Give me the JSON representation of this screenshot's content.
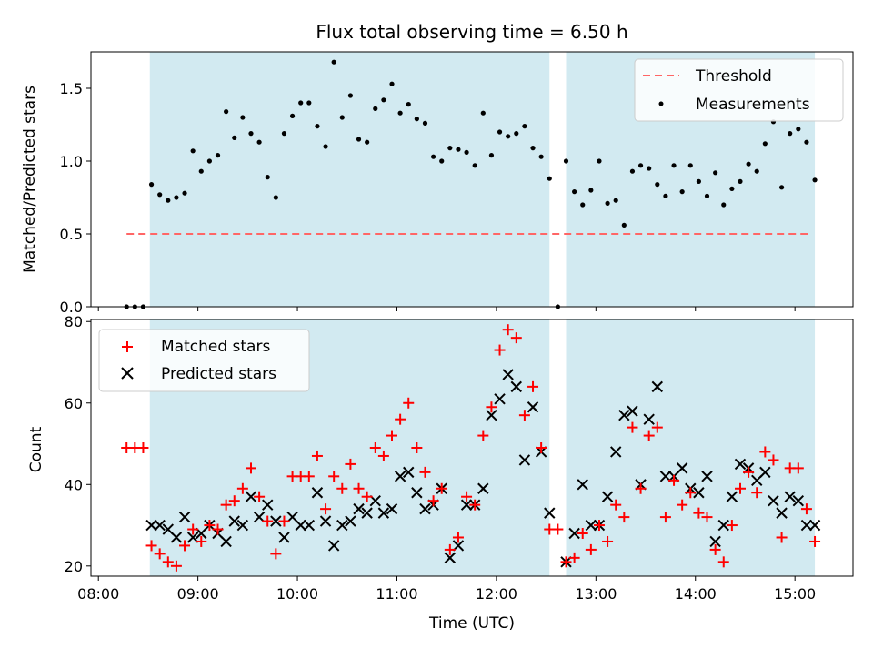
{
  "chart_data": [
    {
      "type": "scatter",
      "title": "Flux total observing time = 6.50 h",
      "ylabel": "Matched/Predicted stars",
      "xlabel": "",
      "ylim": [
        0,
        1.75
      ],
      "yticks": [
        "0.0",
        "0.5",
        "1.0",
        "1.5"
      ],
      "shaded_intervals": [
        [
          "08:31",
          "12:32"
        ],
        [
          "12:42",
          "15:12"
        ]
      ],
      "shade_color": "#add8e6",
      "threshold": {
        "name": "Threshold",
        "value": 0.5,
        "x_range": [
          "08:17",
          "15:10"
        ],
        "color": "#ff6666"
      },
      "legend_position": "top-right",
      "series": [
        {
          "name": "Measurements",
          "color": "#000000",
          "x": [
            "08:17",
            "08:22",
            "08:27",
            "08:32",
            "08:37",
            "08:42",
            "08:47",
            "08:52",
            "08:57",
            "09:02",
            "09:07",
            "09:12",
            "09:17",
            "09:22",
            "09:27",
            "09:32",
            "09:37",
            "09:42",
            "09:47",
            "09:52",
            "09:57",
            "10:02",
            "10:07",
            "10:12",
            "10:17",
            "10:22",
            "10:27",
            "10:32",
            "10:37",
            "10:42",
            "10:47",
            "10:52",
            "10:57",
            "11:02",
            "11:07",
            "11:12",
            "11:17",
            "11:22",
            "11:27",
            "11:32",
            "11:37",
            "11:42",
            "11:47",
            "11:52",
            "11:57",
            "12:02",
            "12:07",
            "12:12",
            "12:17",
            "12:22",
            "12:27",
            "12:32",
            "12:37",
            "12:42",
            "12:47",
            "12:52",
            "12:57",
            "13:02",
            "13:07",
            "13:12",
            "13:17",
            "13:22",
            "13:27",
            "13:32",
            "13:37",
            "13:42",
            "13:47",
            "13:52",
            "13:57",
            "14:02",
            "14:07",
            "14:12",
            "14:17",
            "14:22",
            "14:27",
            "14:32",
            "14:37",
            "14:42",
            "14:47",
            "14:52",
            "14:57",
            "15:02",
            "15:07",
            "15:12"
          ],
          "values": [
            0.0,
            0.0,
            0.0,
            0.84,
            0.77,
            0.73,
            0.75,
            0.78,
            1.07,
            0.93,
            1.0,
            1.04,
            1.34,
            1.16,
            1.3,
            1.19,
            1.13,
            0.89,
            0.75,
            1.19,
            1.31,
            1.4,
            1.4,
            1.24,
            1.1,
            1.68,
            1.3,
            1.45,
            1.15,
            1.13,
            1.36,
            1.42,
            1.53,
            1.33,
            1.39,
            1.29,
            1.26,
            1.03,
            1.0,
            1.09,
            1.08,
            1.06,
            0.97,
            1.33,
            1.04,
            1.2,
            1.17,
            1.19,
            1.24,
            1.09,
            1.03,
            0.88,
            0.0,
            1.0,
            0.79,
            0.7,
            0.8,
            1.0,
            0.71,
            0.73,
            0.56,
            0.93,
            0.97,
            0.95,
            0.84,
            0.76,
            0.97,
            0.79,
            0.97,
            0.86,
            0.76,
            0.92,
            0.7,
            0.81,
            0.86,
            0.98,
            0.93,
            1.12,
            1.27,
            0.82,
            1.19,
            1.22,
            1.13,
            0.87
          ]
        }
      ]
    },
    {
      "type": "scatter",
      "title": "",
      "xlabel": "Time (UTC)",
      "ylabel": "Count",
      "ylim": [
        17.5,
        80.5
      ],
      "yticks": [
        "20",
        "40",
        "60",
        "80"
      ],
      "xticks": [
        "08:00",
        "09:00",
        "10:00",
        "11:00",
        "12:00",
        "13:00",
        "14:00",
        "15:00"
      ],
      "shaded_intervals": [
        [
          "08:31",
          "12:32"
        ],
        [
          "12:42",
          "15:12"
        ]
      ],
      "shade_color": "#add8e6",
      "legend_position": "top-left",
      "series": [
        {
          "name": "Matched stars",
          "marker": "plus",
          "color": "#ff0000",
          "x": [
            "08:17",
            "08:22",
            "08:27",
            "08:32",
            "08:37",
            "08:42",
            "08:47",
            "08:52",
            "08:57",
            "09:02",
            "09:07",
            "09:12",
            "09:17",
            "09:22",
            "09:27",
            "09:32",
            "09:37",
            "09:42",
            "09:47",
            "09:52",
            "09:57",
            "10:02",
            "10:07",
            "10:12",
            "10:17",
            "10:22",
            "10:27",
            "10:32",
            "10:37",
            "10:42",
            "10:47",
            "10:52",
            "10:57",
            "11:02",
            "11:07",
            "11:12",
            "11:17",
            "11:22",
            "11:27",
            "11:32",
            "11:37",
            "11:42",
            "11:47",
            "11:52",
            "11:57",
            "12:02",
            "12:07",
            "12:12",
            "12:17",
            "12:22",
            "12:27",
            "12:32",
            "12:37",
            "12:42",
            "12:47",
            "12:52",
            "12:57",
            "13:02",
            "13:07",
            "13:12",
            "13:17",
            "13:22",
            "13:27",
            "13:32",
            "13:37",
            "13:42",
            "13:47",
            "13:52",
            "13:57",
            "14:02",
            "14:07",
            "14:12",
            "14:17",
            "14:22",
            "14:27",
            "14:32",
            "14:37",
            "14:42",
            "14:47",
            "14:52",
            "14:57",
            "15:02",
            "15:07",
            "15:12"
          ],
          "values": [
            49,
            49,
            49,
            25,
            23,
            21,
            20,
            25,
            29,
            26,
            30,
            29,
            35,
            36,
            39,
            44,
            37,
            31,
            23,
            31,
            42,
            42,
            42,
            47,
            34,
            42,
            39,
            45,
            39,
            37,
            49,
            47,
            52,
            56,
            60,
            49,
            43,
            36,
            39,
            24,
            27,
            37,
            35,
            52,
            59,
            73,
            78,
            76,
            57,
            64,
            49,
            29,
            29,
            21,
            22,
            28,
            24,
            30,
            26,
            35,
            32,
            54,
            39,
            52,
            54,
            32,
            41,
            35,
            38,
            33,
            32,
            24,
            21,
            30,
            39,
            43,
            38,
            48,
            46,
            27,
            44,
            44,
            34,
            26
          ]
        },
        {
          "name": "Predicted stars",
          "marker": "x",
          "color": "#000000",
          "x": [
            "08:32",
            "08:37",
            "08:42",
            "08:47",
            "08:52",
            "08:57",
            "09:02",
            "09:07",
            "09:12",
            "09:17",
            "09:22",
            "09:27",
            "09:32",
            "09:37",
            "09:42",
            "09:47",
            "09:52",
            "09:57",
            "10:02",
            "10:07",
            "10:12",
            "10:17",
            "10:22",
            "10:27",
            "10:32",
            "10:37",
            "10:42",
            "10:47",
            "10:52",
            "10:57",
            "11:02",
            "11:07",
            "11:12",
            "11:17",
            "11:22",
            "11:27",
            "11:32",
            "11:37",
            "11:42",
            "11:47",
            "11:52",
            "11:57",
            "12:02",
            "12:07",
            "12:12",
            "12:17",
            "12:22",
            "12:27",
            "12:32",
            "12:42",
            "12:47",
            "12:52",
            "12:57",
            "13:02",
            "13:07",
            "13:12",
            "13:17",
            "13:22",
            "13:27",
            "13:32",
            "13:37",
            "13:42",
            "13:47",
            "13:52",
            "13:57",
            "14:02",
            "14:07",
            "14:12",
            "14:17",
            "14:22",
            "14:27",
            "14:32",
            "14:37",
            "14:42",
            "14:47",
            "14:52",
            "14:57",
            "15:02",
            "15:07",
            "15:12"
          ],
          "values": [
            30,
            30,
            29,
            27,
            32,
            27,
            28,
            30,
            28,
            26,
            31,
            30,
            37,
            32,
            35,
            31,
            27,
            32,
            30,
            30,
            38,
            31,
            25,
            30,
            31,
            34,
            33,
            36,
            33,
            34,
            42,
            43,
            38,
            34,
            35,
            39,
            22,
            25,
            35,
            35,
            39,
            57,
            61,
            67,
            64,
            46,
            59,
            48,
            33,
            21,
            28,
            40,
            30,
            30,
            37,
            48,
            57,
            58,
            40,
            56,
            64,
            42,
            42,
            44,
            39,
            38,
            42,
            26,
            30,
            37,
            45,
            44,
            41,
            43,
            36,
            33,
            37,
            36,
            30,
            30
          ]
        }
      ]
    }
  ]
}
